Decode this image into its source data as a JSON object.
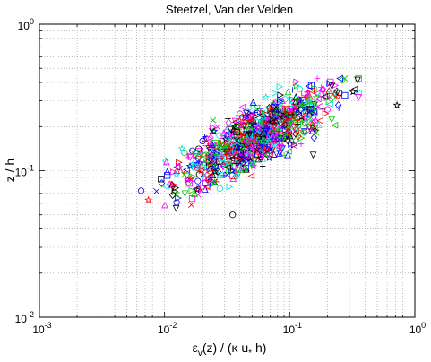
{
  "chart_data": {
    "type": "scatter",
    "title": "Steetzel, Van der Velden",
    "xlabel": {
      "base": "ε",
      "sub": "v",
      "rest": "(z) / (κ u",
      "sub2": "*",
      "end": " h)"
    },
    "ylabel": "z / h",
    "xscale": "log",
    "yscale": "log",
    "xlim": [
      0.001,
      1
    ],
    "ylim": [
      0.01,
      1
    ],
    "grid": true,
    "x_ticks": [
      {
        "base": "10",
        "exp": "-3",
        "value": 0.001
      },
      {
        "base": "10",
        "exp": "-2",
        "value": 0.01
      },
      {
        "base": "10",
        "exp": "-1",
        "value": 0.1
      },
      {
        "base": "10",
        "exp": "0",
        "value": 1
      }
    ],
    "y_ticks": [
      {
        "base": "10",
        "exp": "-2",
        "value": 0.01
      },
      {
        "base": "10",
        "exp": "-1",
        "value": 0.1
      },
      {
        "base": "10",
        "exp": "0",
        "value": 1
      }
    ],
    "marker_colors": [
      "#00c800",
      "#ff00ff",
      "#0000ff",
      "#00e0e0",
      "#ff0000",
      "#000000"
    ],
    "marker_symbols": [
      "triangle-up",
      "triangle-down",
      "triangle-left",
      "triangle-right",
      "circle",
      "square",
      "diamond",
      "plus",
      "x",
      "star"
    ],
    "cluster": {
      "x_center": 0.055,
      "y_center": 0.17,
      "note": "dense cloud of markers spanning x ≈ 0.006–0.35, y ≈ 0.05–0.42"
    },
    "highlight_points": [
      {
        "x": 0.72,
        "y": 0.28,
        "symbol": "star",
        "color": "#000000"
      },
      {
        "x": 0.0065,
        "y": 0.073,
        "symbol": "circle",
        "color": "#0000ff"
      },
      {
        "x": 0.035,
        "y": 0.05,
        "symbol": "circle",
        "color": "#000000"
      },
      {
        "x": 0.33,
        "y": 0.36,
        "symbol": "triangle-left",
        "color": "#000000"
      }
    ]
  }
}
